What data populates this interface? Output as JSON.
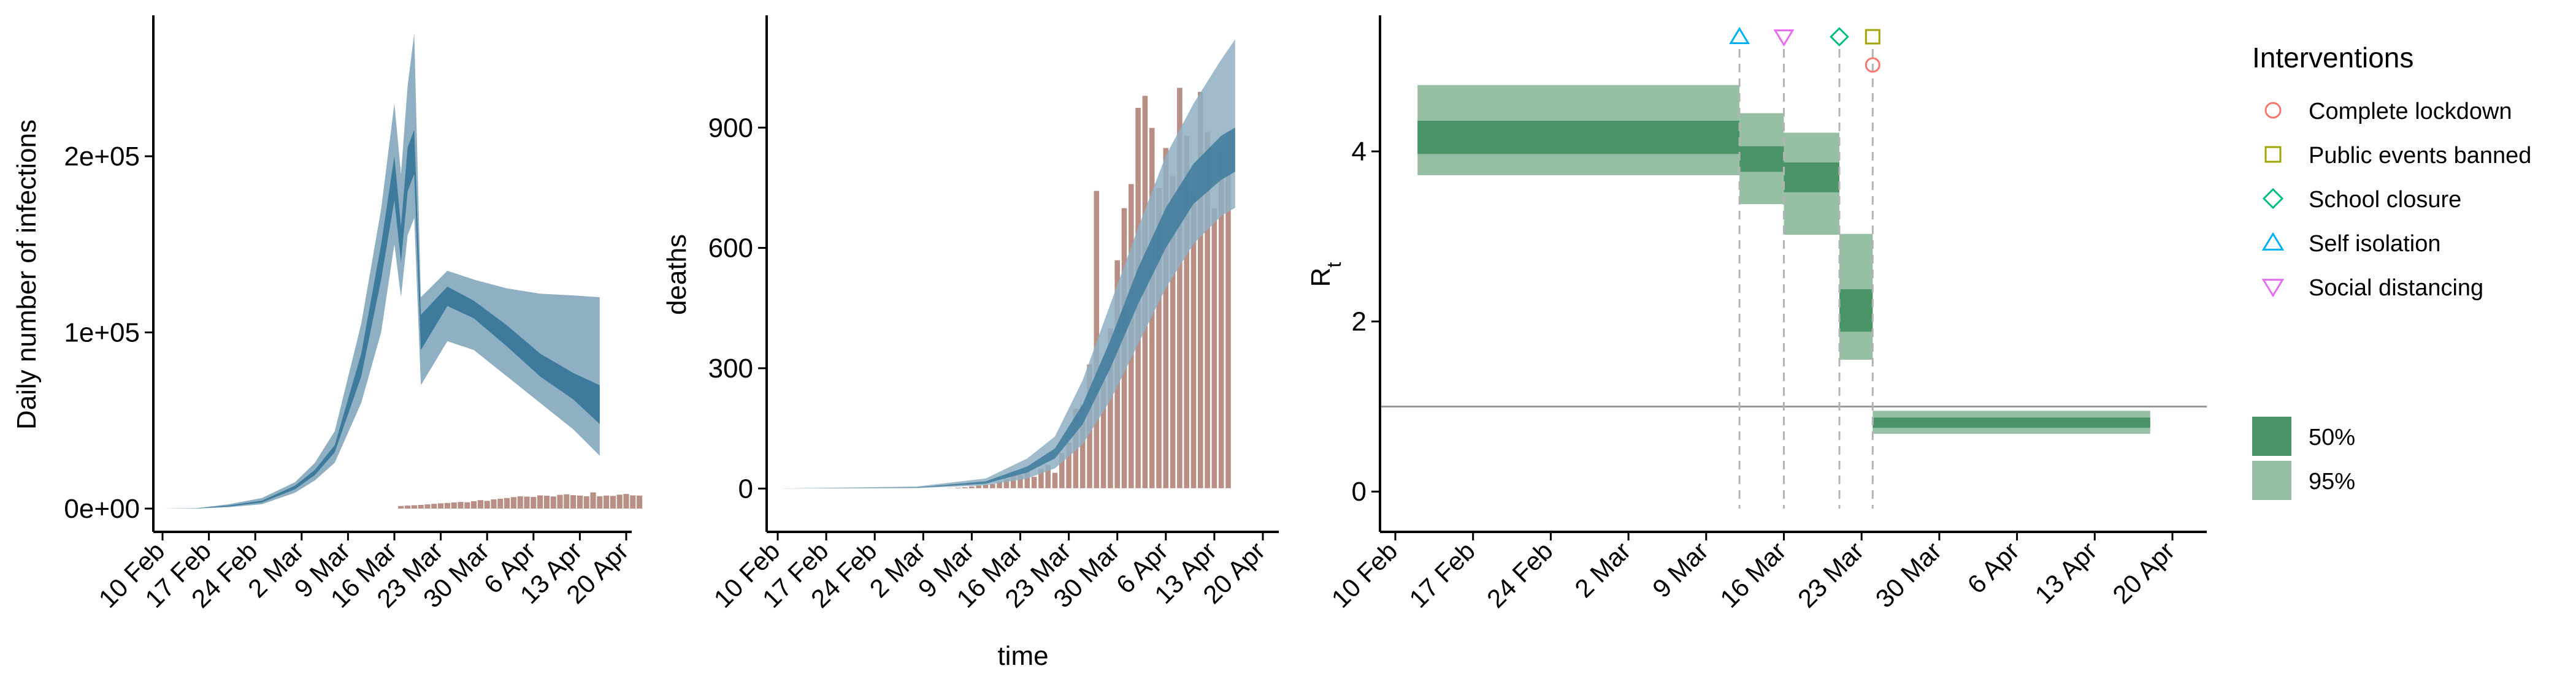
{
  "colors": {
    "band_outer": "#8fb0c3",
    "band_inner": "#3e7a9c",
    "bars": "#b98e84",
    "rt_50": "#4a9468",
    "rt_95": "#96c0a3",
    "lockdown": "#f8766d",
    "public_events": "#a3a500",
    "school": "#00bf7d",
    "self_isolation": "#00b0f6",
    "social_distancing": "#e76bf3"
  },
  "chart_data": [
    {
      "type": "area",
      "ylabel": "Daily number of infections",
      "xlabel": "",
      "x_ticks": [
        "10 Feb",
        "17 Feb",
        "24 Feb",
        "2 Mar",
        "9 Mar",
        "16 Mar",
        "23 Mar",
        "30 Mar",
        "6 Apr",
        "13 Apr",
        "20 Apr"
      ],
      "y_ticks": [
        "0e+00",
        "1e+05",
        "2e+05"
      ],
      "ylim": [
        0,
        280000
      ],
      "series": [
        {
          "points": [
            [
              0,
              0,
              0,
              0,
              0
            ],
            [
              5,
              20,
              60,
              120,
              200
            ],
            [
              10,
              800,
              1200,
              1800,
              2500
            ],
            [
              15,
              2500,
              3500,
              4500,
              6000
            ],
            [
              20,
              9000,
              11000,
              13000,
              15000
            ],
            [
              23,
              16000,
              19000,
              22000,
              26000
            ],
            [
              26,
              26000,
              32000,
              36000,
              44000
            ],
            [
              30,
              60000,
              75000,
              88000,
              105000
            ],
            [
              33,
              100000,
              130000,
              150000,
              170000
            ],
            [
              35,
              150000,
              175000,
              200000,
              230000
            ],
            [
              36,
              120000,
              140000,
              160000,
              190000
            ],
            [
              37,
              155000,
              180000,
              205000,
              240000
            ],
            [
              38,
              165000,
              190000,
              215000,
              270000
            ],
            [
              39,
              70000,
              90000,
              110000,
              120000
            ],
            [
              43,
              95000,
              115000,
              126000,
              135000
            ],
            [
              47,
              90000,
              108000,
              118000,
              130000
            ],
            [
              52,
              75000,
              92000,
              104000,
              125000
            ],
            [
              57,
              60000,
              75000,
              88000,
              122000
            ],
            [
              62,
              45000,
              62000,
              77000,
              121000
            ],
            [
              66,
              30000,
              48000,
              70000,
              120000
            ]
          ]
        }
      ],
      "bars": [
        1500,
        1700,
        1900,
        2100,
        2400,
        2700,
        3000,
        3200,
        3500,
        3800,
        3600,
        4200,
        4800,
        4400,
        5200,
        5600,
        6000,
        6500,
        7000,
        6800,
        6600,
        7500,
        7300,
        6900,
        7800,
        8100,
        7600,
        7400,
        7000,
        9200,
        7000,
        7400,
        7200,
        7900,
        8300,
        7500,
        7400
      ]
    },
    {
      "type": "area",
      "ylabel": "deaths",
      "xlabel": "time",
      "x_ticks": [
        "10 Feb",
        "17 Feb",
        "24 Feb",
        "2 Mar",
        "9 Mar",
        "16 Mar",
        "23 Mar",
        "30 Mar",
        "6 Apr",
        "13 Apr",
        "20 Apr"
      ],
      "y_ticks": [
        "0",
        "300",
        "600",
        "900"
      ],
      "ylim": [
        -50,
        1180
      ],
      "series": [
        {
          "points": [
            [
              0,
              0,
              0,
              0,
              0
            ],
            [
              20,
              1,
              2,
              3,
              5
            ],
            [
              30,
              8,
              12,
              18,
              25
            ],
            [
              36,
              25,
              40,
              55,
              75
            ],
            [
              40,
              50,
              75,
              100,
              130
            ],
            [
              44,
              110,
              160,
              210,
              270
            ],
            [
              48,
              220,
              300,
              370,
              460
            ],
            [
              52,
              360,
              460,
              550,
              650
            ],
            [
              56,
              500,
              600,
              700,
              830
            ],
            [
              60,
              610,
              710,
              810,
              960
            ],
            [
              64,
              680,
              770,
              880,
              1070
            ],
            [
              66,
              700,
              790,
              900,
              1120
            ]
          ]
        }
      ],
      "bars": [
        1,
        2,
        3,
        4,
        6,
        8,
        10,
        12,
        18,
        25,
        40,
        35,
        45,
        30,
        50,
        60,
        40,
        90,
        115,
        200,
        210,
        310,
        743,
        270,
        400,
        570,
        700,
        760,
        950,
        980,
        900,
        750,
        850,
        780,
        1000,
        880,
        740,
        990,
        890,
        700,
        845,
        890
      ]
    },
    {
      "type": "bar",
      "ylabel": "R_t",
      "xlabel": "",
      "x_ticks": [
        "10 Feb",
        "17 Feb",
        "24 Feb",
        "2 Mar",
        "9 Mar",
        "16 Mar",
        "23 Mar",
        "30 Mar",
        "6 Apr",
        "13 Apr",
        "20 Apr"
      ],
      "y_ticks": [
        "0",
        "2",
        "4"
      ],
      "ylim": [
        -0.2,
        5.6
      ],
      "reference_line": 1,
      "segments": [
        {
          "start": 2,
          "end": 31,
          "lo95": 3.72,
          "lo50": 3.97,
          "hi50": 4.36,
          "hi95": 4.78
        },
        {
          "start": 31,
          "end": 35,
          "lo95": 3.38,
          "lo50": 3.76,
          "hi50": 4.06,
          "hi95": 4.45
        },
        {
          "start": 35,
          "end": 40,
          "lo95": 3.02,
          "lo50": 3.52,
          "hi50": 3.87,
          "hi95": 4.22
        },
        {
          "start": 40,
          "end": 43,
          "lo95": 1.55,
          "lo50": 1.88,
          "hi50": 2.38,
          "hi95": 3.03
        },
        {
          "start": 43,
          "end": 68,
          "lo95": 0.68,
          "lo50": 0.75,
          "hi50": 0.87,
          "hi95": 0.95
        }
      ],
      "intervention_days": [
        31,
        35,
        40,
        43
      ],
      "markers": [
        {
          "day": 31,
          "row": 0,
          "label": "Self isolation"
        },
        {
          "day": 35,
          "row": 0,
          "label": "Social distancing"
        },
        {
          "day": 40,
          "row": 0,
          "label": "School closure"
        },
        {
          "day": 43,
          "row": 0,
          "label": "Public events banned"
        },
        {
          "day": 43,
          "row": 1,
          "label": "Complete lockdown"
        }
      ]
    }
  ],
  "legend": {
    "interventions_title": "Interventions",
    "interventions": [
      {
        "label": "Complete lockdown",
        "shape": "circle"
      },
      {
        "label": "Public events banned",
        "shape": "square"
      },
      {
        "label": "School closure",
        "shape": "diamond"
      },
      {
        "label": "Self isolation",
        "shape": "triangle-up"
      },
      {
        "label": "Social distancing",
        "shape": "triangle-down"
      }
    ],
    "ci": [
      {
        "label": "50%"
      },
      {
        "label": "95%"
      }
    ]
  }
}
